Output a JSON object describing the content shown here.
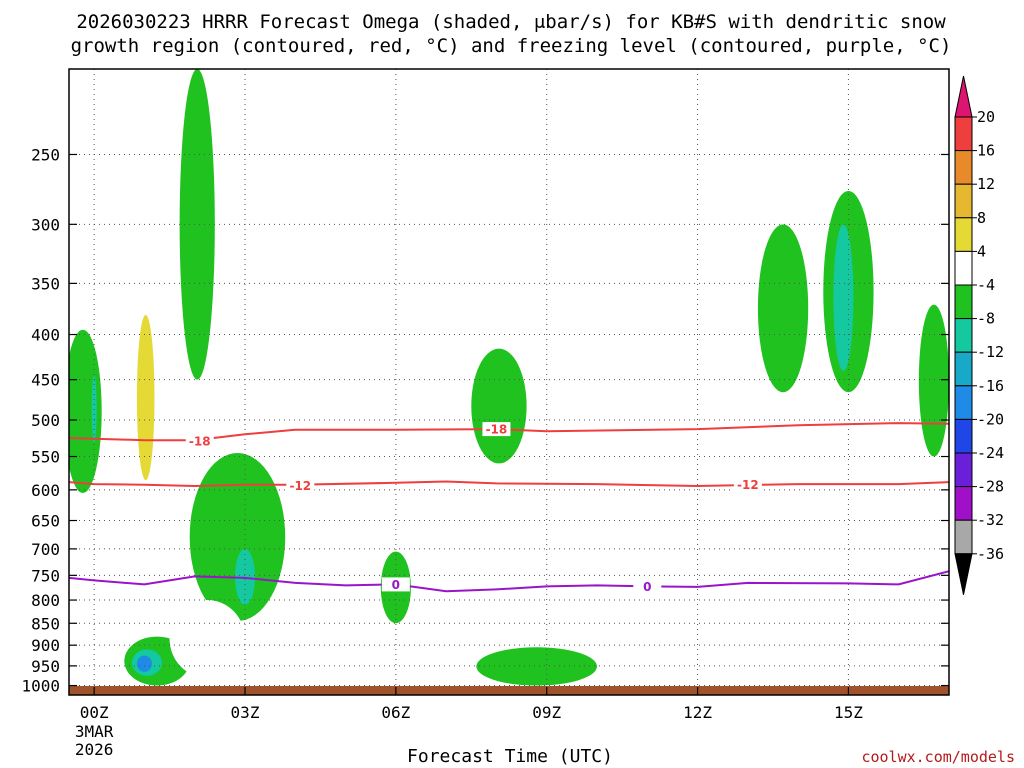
{
  "title_line1": "2026030223 HRRR Forecast Omega (shaded, μbar/s) for KB#S with dendritic snow",
  "title_line2": "growth region (contoured, red, °C) and freezing level (contoured, purple, °C)",
  "xlabel": "Forecast Time (UTC)",
  "credit": "coolwx.com/models",
  "chart_data": {
    "type": "time-height cross-section",
    "x_label": "Forecast Time (UTC)",
    "x_range_hours": [
      -0.5,
      17
    ],
    "x_ticks": [
      {
        "hour": 0,
        "label": "00Z",
        "sub": [
          "3MAR",
          "2026"
        ]
      },
      {
        "hour": 3,
        "label": "03Z"
      },
      {
        "hour": 6,
        "label": "06Z"
      },
      {
        "hour": 9,
        "label": "09Z"
      },
      {
        "hour": 12,
        "label": "12Z"
      },
      {
        "hour": 15,
        "label": "15Z"
      }
    ],
    "y_axis": "pressure (hPa), log scale, inverted",
    "y_range_hpa": [
      1025,
      200
    ],
    "y_ticks": [
      250,
      300,
      350,
      400,
      450,
      500,
      550,
      600,
      650,
      700,
      750,
      800,
      850,
      900,
      950,
      1000
    ],
    "colorbar": {
      "units": "μbar/s",
      "labels": [
        "20",
        "16",
        "12",
        "8",
        "4",
        "-4",
        "-8",
        "-12",
        "-16",
        "-20",
        "-24",
        "-28",
        "-32",
        "-36"
      ],
      "colors": [
        "#dd1470",
        "#ee3e3e",
        "#e88a2a",
        "#e6b830",
        "#e5d935",
        "#ffffff",
        "#1fc21f",
        "#14c8a0",
        "#18a8c8",
        "#1e8be6",
        "#1f46e6",
        "#6a20d8",
        "#a010c8",
        "#a8a8a8",
        "#000000"
      ]
    },
    "contours": [
      {
        "name": "dendritic-minus18",
        "label": "-18",
        "color": "#ee3e3e",
        "points": [
          [
            -0.5,
            524
          ],
          [
            0,
            525
          ],
          [
            1,
            527
          ],
          [
            2,
            527
          ],
          [
            3,
            519
          ],
          [
            4,
            513
          ],
          [
            6,
            513
          ],
          [
            8,
            512
          ],
          [
            9,
            515
          ],
          [
            12,
            512
          ],
          [
            14,
            507
          ],
          [
            16,
            504
          ],
          [
            17,
            505
          ]
        ],
        "label_positions": [
          [
            2.1,
            528
          ],
          [
            8,
            512
          ]
        ]
      },
      {
        "name": "dendritic-minus12",
        "label": "-12",
        "color": "#ee3e3e",
        "points": [
          [
            -0.5,
            588
          ],
          [
            0,
            591
          ],
          [
            1,
            592
          ],
          [
            2,
            594
          ],
          [
            3,
            592
          ],
          [
            4,
            592
          ],
          [
            6,
            589
          ],
          [
            7,
            587
          ],
          [
            8,
            590
          ],
          [
            10,
            591
          ],
          [
            12,
            594
          ],
          [
            14,
            591
          ],
          [
            16,
            591
          ],
          [
            17,
            588
          ]
        ],
        "label_positions": [
          [
            4.1,
            593
          ],
          [
            13,
            592
          ]
        ]
      },
      {
        "name": "freezing-level",
        "label": "0",
        "color": "#9a14c8",
        "points": [
          [
            -0.5,
            755
          ],
          [
            0,
            760
          ],
          [
            1,
            768
          ],
          [
            2,
            752
          ],
          [
            3,
            755
          ],
          [
            4,
            765
          ],
          [
            5,
            770
          ],
          [
            6,
            768
          ],
          [
            7,
            782
          ],
          [
            8,
            778
          ],
          [
            9,
            772
          ],
          [
            10,
            770
          ],
          [
            11,
            772
          ],
          [
            12,
            773
          ],
          [
            13,
            765
          ],
          [
            15,
            766
          ],
          [
            16,
            768
          ],
          [
            17,
            742
          ]
        ],
        "label_positions": [
          [
            6,
            768
          ],
          [
            11,
            772
          ]
        ]
      }
    ],
    "omega_regions": [
      {
        "level": "4",
        "x": [
          0.5,
          0.9
        ],
        "p": [
          205,
          330
        ]
      },
      {
        "level": "4",
        "x": [
          0.55,
          1.45
        ],
        "p": [
          330,
          630
        ]
      },
      {
        "level": "8",
        "x": [
          0.85,
          1.2
        ],
        "p": [
          380,
          585
        ]
      },
      {
        "level": "-4",
        "x": [
          1.7,
          2.4
        ],
        "p": [
          200,
          450
        ]
      },
      {
        "level": "-4",
        "x": [
          -0.6,
          0.15
        ],
        "p": [
          395,
          605
        ]
      },
      {
        "level": "-8",
        "x": [
          -0.05,
          0.05
        ],
        "p": [
          445,
          530
        ]
      },
      {
        "level": "-4",
        "x": [
          1.9,
          3.8
        ],
        "p": [
          545,
          845
        ]
      },
      {
        "level": "-8",
        "x": [
          2.8,
          3.2
        ],
        "p": [
          700,
          810
        ]
      },
      {
        "level": "4",
        "x": [
          5.7,
          6.3
        ],
        "p": [
          285,
          360
        ]
      },
      {
        "level": "-4",
        "x": [
          7.5,
          8.6
        ],
        "p": [
          415,
          560
        ]
      },
      {
        "level": "4",
        "x": [
          6.7,
          8.2
        ],
        "p": [
          690,
          850
        ]
      },
      {
        "level": "-4",
        "x": [
          5.7,
          6.3
        ],
        "p": [
          705,
          850
        ]
      },
      {
        "level": "4",
        "x": [
          13.4,
          14.5
        ],
        "p": [
          225,
          395
        ]
      },
      {
        "level": "-4",
        "x": [
          13.2,
          14.2
        ],
        "p": [
          300,
          465
        ]
      },
      {
        "level": "-4",
        "x": [
          14.5,
          15.5
        ],
        "p": [
          275,
          465
        ]
      },
      {
        "level": "-8",
        "x": [
          14.7,
          15.1
        ],
        "p": [
          300,
          440
        ]
      },
      {
        "level": "4",
        "x": [
          15.9,
          16.2
        ],
        "p": [
          335,
          410
        ]
      },
      {
        "level": "-4",
        "x": [
          16.4,
          17.0
        ],
        "p": [
          370,
          550
        ]
      },
      {
        "level": "-4",
        "x": [
          0.6,
          1.9
        ],
        "p": [
          880,
          1000
        ]
      },
      {
        "level": "-8",
        "x": [
          0.75,
          1.35
        ],
        "p": [
          910,
          975
        ]
      },
      {
        "level": "-16",
        "x": [
          0.85,
          1.15
        ],
        "p": [
          925,
          965
        ]
      },
      {
        "level": "4",
        "x": [
          1.5,
          3.0
        ],
        "p": [
          800,
          980
        ]
      },
      {
        "level": "4",
        "x": [
          3.2,
          4.3
        ],
        "p": [
          860,
          990
        ]
      },
      {
        "level": "4",
        "x": [
          5.6,
          6.4
        ],
        "p": [
          905,
          1000
        ]
      },
      {
        "level": "-4",
        "x": [
          7.6,
          10.0
        ],
        "p": [
          905,
          1000
        ]
      },
      {
        "level": "4",
        "x": [
          14.0,
          17.0
        ],
        "p": [
          780,
          990
        ]
      },
      {
        "level": "4",
        "x": [
          -0.6,
          0.2
        ],
        "p": [
          900,
          990
        ]
      }
    ]
  }
}
